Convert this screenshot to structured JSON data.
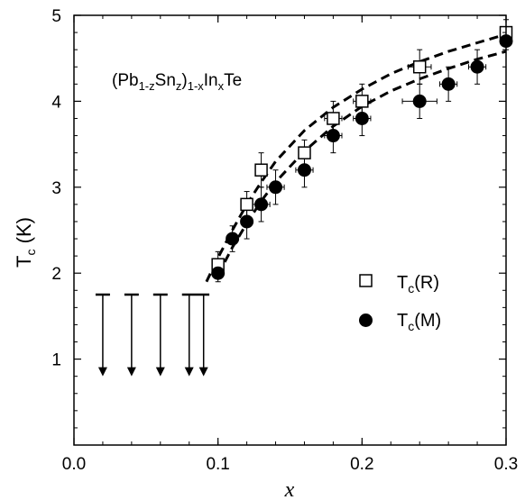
{
  "chart_data": {
    "type": "scatter",
    "annotation": {
      "base": "(Pb",
      "sub1": "1-z",
      "mid1": "Sn",
      "sub2": "z",
      "mid2": ")",
      "sub3": "1-x",
      "mid3": "In",
      "sub4": "x",
      "end": "Te"
    },
    "xlabel": "x",
    "ylabel": {
      "main": "T",
      "sub": "c",
      "rest": " (K)"
    },
    "xlim": [
      0.0,
      0.3
    ],
    "ylim": [
      0,
      5
    ],
    "x_ticks": [
      "0.0",
      "0.1",
      "0.2",
      "0.3"
    ],
    "y_ticks": [
      "1",
      "2",
      "3",
      "4",
      "5"
    ],
    "legend_position": "right",
    "series": [
      {
        "name": "Tc(R)",
        "legend": {
          "main": "T",
          "sub": "c",
          "rest": "(R)"
        },
        "marker": "open-square",
        "points": [
          {
            "x": 0.1,
            "y": 2.1,
            "xerr": 0.004,
            "yerr": 0.15
          },
          {
            "x": 0.12,
            "y": 2.8,
            "xerr": 0.004,
            "yerr": 0.15
          },
          {
            "x": 0.13,
            "y": 3.2,
            "xerr": 0.004,
            "yerr": 0.2
          },
          {
            "x": 0.16,
            "y": 3.4,
            "xerr": 0.004,
            "yerr": 0.15
          },
          {
            "x": 0.18,
            "y": 3.8,
            "xerr": 0.006,
            "yerr": 0.2
          },
          {
            "x": 0.2,
            "y": 4.0,
            "xerr": 0.006,
            "yerr": 0.2
          },
          {
            "x": 0.24,
            "y": 4.4,
            "xerr": 0.008,
            "yerr": 0.2
          },
          {
            "x": 0.3,
            "y": 4.8,
            "xerr": 0.004,
            "yerr": 0.15
          }
        ]
      },
      {
        "name": "Tc(M)",
        "legend": {
          "main": "T",
          "sub": "c",
          "rest": "(M)"
        },
        "marker": "filled-circle",
        "points": [
          {
            "x": 0.1,
            "y": 2.0,
            "xerr": 0.004,
            "yerr": 0.1
          },
          {
            "x": 0.11,
            "y": 2.4,
            "xerr": 0.004,
            "yerr": 0.15
          },
          {
            "x": 0.12,
            "y": 2.6,
            "xerr": 0.004,
            "yerr": 0.2
          },
          {
            "x": 0.13,
            "y": 2.8,
            "xerr": 0.006,
            "yerr": 0.2
          },
          {
            "x": 0.14,
            "y": 3.0,
            "xerr": 0.006,
            "yerr": 0.2
          },
          {
            "x": 0.16,
            "y": 3.2,
            "xerr": 0.006,
            "yerr": 0.2
          },
          {
            "x": 0.18,
            "y": 3.6,
            "xerr": 0.006,
            "yerr": 0.2
          },
          {
            "x": 0.2,
            "y": 3.8,
            "xerr": 0.006,
            "yerr": 0.2
          },
          {
            "x": 0.24,
            "y": 4.0,
            "xerr": 0.012,
            "yerr": 0.2
          },
          {
            "x": 0.26,
            "y": 4.2,
            "xerr": 0.006,
            "yerr": 0.2
          },
          {
            "x": 0.28,
            "y": 4.4,
            "xerr": 0.006,
            "yerr": 0.2
          },
          {
            "x": 0.3,
            "y": 4.7,
            "xerr": 0.004,
            "yerr": 0.1
          }
        ]
      }
    ],
    "fit_curves": [
      {
        "of": "Tc(R)",
        "style": "dashed",
        "points": [
          [
            0.092,
            1.9
          ],
          [
            0.1,
            2.18
          ],
          [
            0.11,
            2.5
          ],
          [
            0.12,
            2.8
          ],
          [
            0.13,
            3.06
          ],
          [
            0.14,
            3.3
          ],
          [
            0.16,
            3.66
          ],
          [
            0.18,
            3.93
          ],
          [
            0.2,
            4.14
          ],
          [
            0.22,
            4.32
          ],
          [
            0.24,
            4.46
          ],
          [
            0.26,
            4.58
          ],
          [
            0.28,
            4.68
          ],
          [
            0.3,
            4.78
          ]
        ]
      },
      {
        "of": "Tc(M)",
        "style": "dashed",
        "points": [
          [
            0.1,
            1.98
          ],
          [
            0.11,
            2.3
          ],
          [
            0.12,
            2.58
          ],
          [
            0.13,
            2.84
          ],
          [
            0.14,
            3.06
          ],
          [
            0.16,
            3.42
          ],
          [
            0.18,
            3.71
          ],
          [
            0.2,
            3.94
          ],
          [
            0.22,
            4.12
          ],
          [
            0.24,
            4.26
          ],
          [
            0.26,
            4.38
          ],
          [
            0.28,
            4.49
          ],
          [
            0.3,
            4.58
          ]
        ]
      }
    ],
    "upper_limits": {
      "y_top": 1.75,
      "y_bottom": 0.8,
      "x": [
        0.02,
        0.04,
        0.06,
        0.08,
        0.09
      ],
      "caps": [
        [
          0.015,
          0.025
        ],
        [
          0.035,
          0.045
        ],
        [
          0.055,
          0.065
        ],
        [
          0.075,
          0.094
        ]
      ]
    }
  }
}
